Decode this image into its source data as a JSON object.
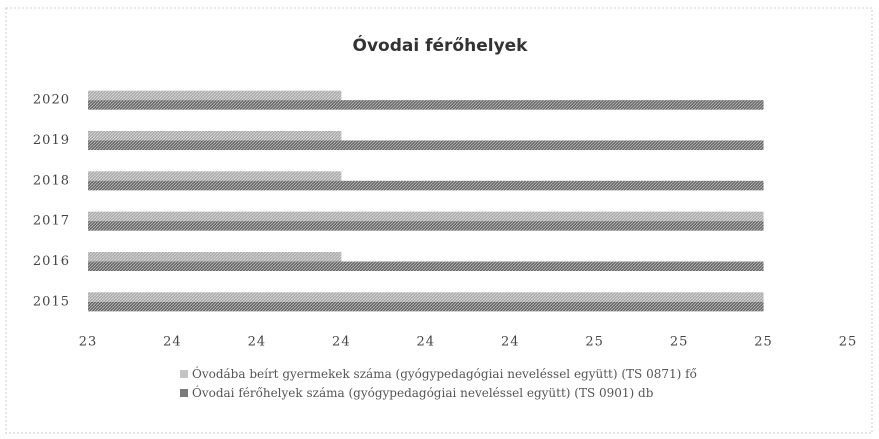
{
  "chart_data": {
    "type": "hbar",
    "title": "Óvodai férőhelyek",
    "categories": [
      "2015",
      "2016",
      "2017",
      "2018",
      "2019",
      "2020"
    ],
    "series": [
      {
        "name": "Óvodába beírt gyermekek száma (gyógypedagógiai neveléssel együtt) (TS 0871) fő",
        "color": "#c4c4c4",
        "values": [
          25,
          24,
          25,
          24,
          24,
          24
        ]
      },
      {
        "name": "Óvodai férőhelyek száma (gyógypedagógiai neveléssel együtt) (TS 0901) db",
        "color": "#7a7a7a",
        "values": [
          25,
          25,
          25,
          25,
          25,
          25
        ]
      }
    ],
    "xlim": [
      23.4,
      25.2
    ],
    "xticks": [
      {
        "value": 23.4,
        "label": "23"
      },
      {
        "value": 23.6,
        "label": "24"
      },
      {
        "value": 23.8,
        "label": "24"
      },
      {
        "value": 24.0,
        "label": "24"
      },
      {
        "value": 24.2,
        "label": "24"
      },
      {
        "value": 24.4,
        "label": "24"
      },
      {
        "value": 24.6,
        "label": "25"
      },
      {
        "value": 24.8,
        "label": "25"
      },
      {
        "value": 25.0,
        "label": "25"
      },
      {
        "value": 25.2,
        "label": "25"
      }
    ],
    "legend": "bottom"
  }
}
